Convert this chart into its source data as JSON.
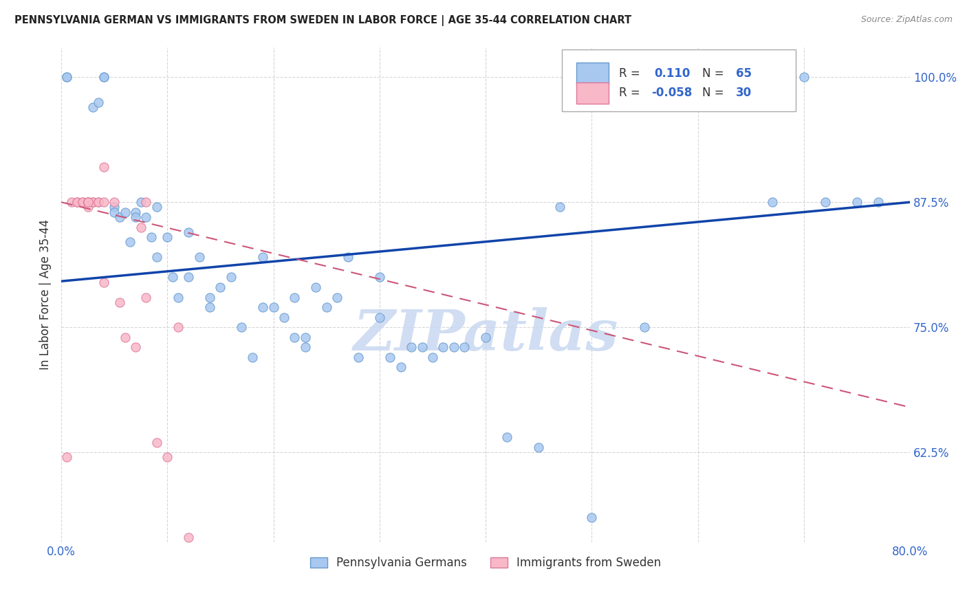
{
  "title": "PENNSYLVANIA GERMAN VS IMMIGRANTS FROM SWEDEN IN LABOR FORCE | AGE 35-44 CORRELATION CHART",
  "source": "Source: ZipAtlas.com",
  "xlabel": "",
  "ylabel": "In Labor Force | Age 35-44",
  "xlim": [
    0.0,
    0.8
  ],
  "ylim": [
    0.535,
    1.03
  ],
  "xticks": [
    0.0,
    0.1,
    0.2,
    0.3,
    0.4,
    0.5,
    0.6,
    0.7,
    0.8
  ],
  "xticklabels": [
    "0.0%",
    "",
    "",
    "",
    "",
    "",
    "",
    "",
    "80.0%"
  ],
  "yticks": [
    0.625,
    0.75,
    0.875,
    1.0
  ],
  "yticklabels": [
    "62.5%",
    "75.0%",
    "87.5%",
    "100.0%"
  ],
  "blue_R": 0.11,
  "blue_N": 65,
  "pink_R": -0.058,
  "pink_N": 30,
  "blue_color": "#a8c8f0",
  "pink_color": "#f8b8c8",
  "blue_edge": "#6699cc",
  "pink_edge": "#dd7799",
  "trend_blue": "#1144aa",
  "trend_pink": "#cc5577",
  "blue_trend_x0": 0.0,
  "blue_trend_y0": 0.796,
  "blue_trend_x1": 0.8,
  "blue_trend_y1": 0.875,
  "pink_trend_x0": 0.0,
  "pink_trend_y0": 0.875,
  "pink_trend_x1": 0.8,
  "pink_trend_y1": 0.67,
  "blue_scatter_x": [
    0.005,
    0.005,
    0.03,
    0.035,
    0.04,
    0.04,
    0.05,
    0.05,
    0.055,
    0.06,
    0.065,
    0.07,
    0.07,
    0.075,
    0.08,
    0.085,
    0.09,
    0.09,
    0.1,
    0.105,
    0.11,
    0.12,
    0.12,
    0.13,
    0.14,
    0.14,
    0.15,
    0.16,
    0.17,
    0.18,
    0.19,
    0.19,
    0.2,
    0.21,
    0.22,
    0.22,
    0.23,
    0.23,
    0.24,
    0.25,
    0.26,
    0.27,
    0.28,
    0.3,
    0.3,
    0.31,
    0.32,
    0.33,
    0.34,
    0.35,
    0.36,
    0.37,
    0.38,
    0.4,
    0.42,
    0.45,
    0.47,
    0.5,
    0.55,
    0.62,
    0.67,
    0.7,
    0.72,
    0.75,
    0.77
  ],
  "blue_scatter_y": [
    1.0,
    1.0,
    0.97,
    0.975,
    1.0,
    1.0,
    0.87,
    0.865,
    0.86,
    0.865,
    0.835,
    0.865,
    0.86,
    0.875,
    0.86,
    0.84,
    0.87,
    0.82,
    0.84,
    0.8,
    0.78,
    0.845,
    0.8,
    0.82,
    0.77,
    0.78,
    0.79,
    0.8,
    0.75,
    0.72,
    0.82,
    0.77,
    0.77,
    0.76,
    0.74,
    0.78,
    0.74,
    0.73,
    0.79,
    0.77,
    0.78,
    0.82,
    0.72,
    0.8,
    0.76,
    0.72,
    0.71,
    0.73,
    0.73,
    0.72,
    0.73,
    0.73,
    0.73,
    0.74,
    0.64,
    0.63,
    0.87,
    0.56,
    0.75,
    1.0,
    0.875,
    1.0,
    0.875,
    0.875,
    0.875
  ],
  "pink_scatter_x": [
    0.005,
    0.01,
    0.015,
    0.015,
    0.02,
    0.02,
    0.025,
    0.025,
    0.025,
    0.025,
    0.025,
    0.03,
    0.03,
    0.035,
    0.035,
    0.04,
    0.04,
    0.05,
    0.055,
    0.06,
    0.07,
    0.075,
    0.08,
    0.09,
    0.1,
    0.11,
    0.12,
    0.025,
    0.04,
    0.08
  ],
  "pink_scatter_y": [
    0.62,
    0.875,
    0.875,
    0.875,
    0.875,
    0.875,
    0.875,
    0.875,
    0.875,
    0.875,
    0.87,
    0.875,
    0.875,
    0.875,
    0.875,
    0.875,
    0.91,
    0.875,
    0.775,
    0.74,
    0.73,
    0.85,
    0.78,
    0.635,
    0.62,
    0.75,
    0.54,
    0.875,
    0.795,
    0.875
  ],
  "watermark": "ZIPatlas",
  "watermark_color": "#c8d8f0",
  "figsize": [
    14.06,
    8.92
  ],
  "dpi": 100
}
